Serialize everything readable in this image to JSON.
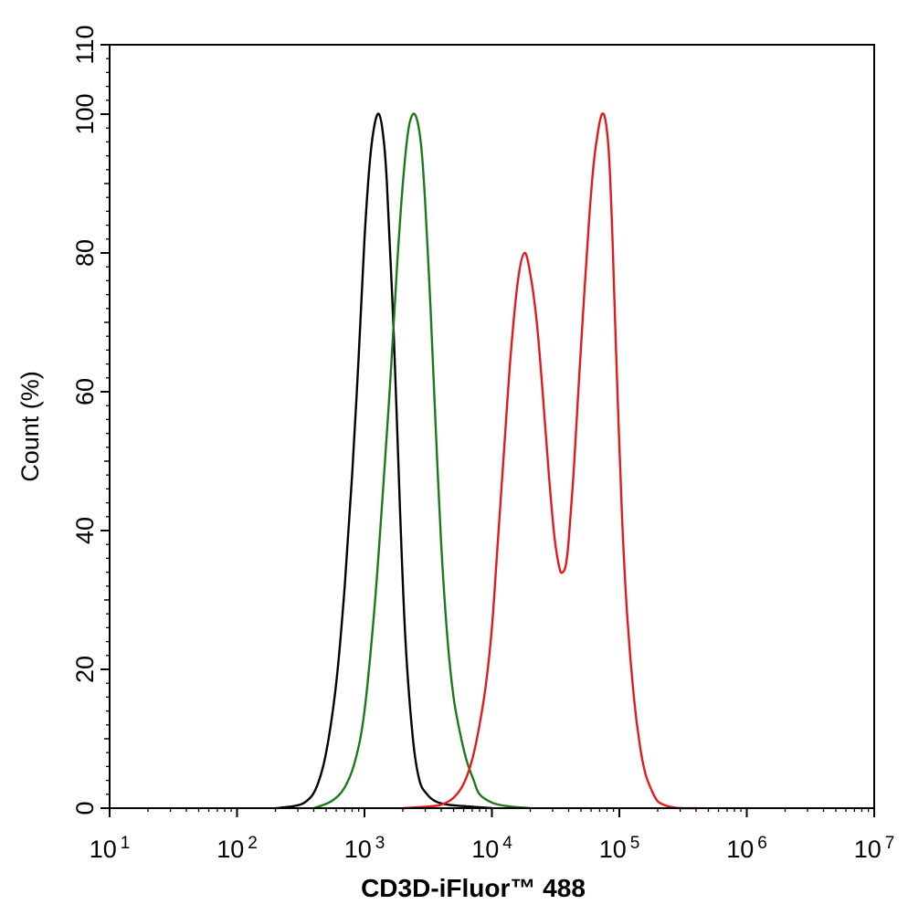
{
  "chart_data": {
    "type": "line",
    "title": "",
    "xlabel": "CD3D-iFluor™ 488",
    "ylabel": "Count  (%)",
    "x_scale": "log10",
    "xlim": [
      10,
      10000000
    ],
    "ylim": [
      0,
      110
    ],
    "x_tick_labels": [
      {
        "base": "10",
        "exp": "1"
      },
      {
        "base": "10",
        "exp": "2"
      },
      {
        "base": "10",
        "exp": "3"
      },
      {
        "base": "10",
        "exp": "4"
      },
      {
        "base": "10",
        "exp": "5"
      },
      {
        "base": "10",
        "exp": "6"
      },
      {
        "base": "10",
        "exp": "7"
      }
    ],
    "y_ticks": [
      "0",
      "20",
      "40",
      "60",
      "80",
      "100",
      "110"
    ],
    "grid": false,
    "legend": "none",
    "series": [
      {
        "color": "#000000",
        "x": [
          200,
          280,
          350,
          420,
          500,
          600,
          700,
          800,
          900,
          1000,
          1100,
          1200,
          1300,
          1400,
          1500,
          1700,
          1900,
          2100,
          2400,
          2700,
          3100,
          3600,
          4500,
          6000,
          10000
        ],
        "y": [
          0,
          0.3,
          1,
          3,
          8,
          18,
          32,
          48,
          65,
          82,
          93,
          98.5,
          100,
          97,
          90,
          68,
          43,
          24,
          10,
          4,
          2,
          1,
          0.5,
          0.3,
          0
        ]
      },
      {
        "color": "#1a7a1a",
        "x": [
          400,
          550,
          700,
          850,
          1000,
          1200,
          1400,
          1600,
          1800,
          2000,
          2200,
          2400,
          2600,
          2800,
          3000,
          3300,
          3600,
          4000,
          4500,
          5000,
          5600,
          6300,
          7200,
          8000,
          10000,
          13000,
          20000
        ],
        "y": [
          0,
          1,
          3,
          7,
          14,
          29,
          46,
          62,
          78,
          90,
          97.5,
          100,
          99,
          95,
          87,
          72,
          56,
          38,
          24,
          16,
          11,
          7,
          4,
          2,
          0.8,
          0.3,
          0
        ]
      },
      {
        "color": "#e31a1c",
        "x": [
          2000,
          3000,
          4000,
          5000,
          6000,
          7000,
          8000,
          9000,
          10000,
          11000,
          12500,
          14000,
          16000,
          18000,
          20000,
          22500,
          25000,
          28000,
          31000,
          34000,
          36000,
          38000,
          40000,
          44000,
          48000,
          53000,
          58000,
          63000,
          68000,
          73000,
          78000,
          83000,
          88000,
          95000,
          105000,
          115000,
          130000,
          145000,
          160000,
          180000,
          200000,
          230000,
          260000,
          300000,
          400000
        ],
        "y": [
          0,
          0.2,
          0.5,
          1.5,
          3.5,
          7,
          12,
          18,
          26,
          37,
          52,
          65,
          76,
          80,
          77,
          70,
          60,
          48,
          39,
          34.5,
          34,
          35,
          38.5,
          49,
          61,
          74,
          85,
          93,
          97.5,
          100,
          99,
          94,
          83,
          64,
          42,
          28,
          16,
          9,
          5,
          2.5,
          1,
          0.4,
          0.15,
          0,
          0
        ]
      }
    ]
  }
}
